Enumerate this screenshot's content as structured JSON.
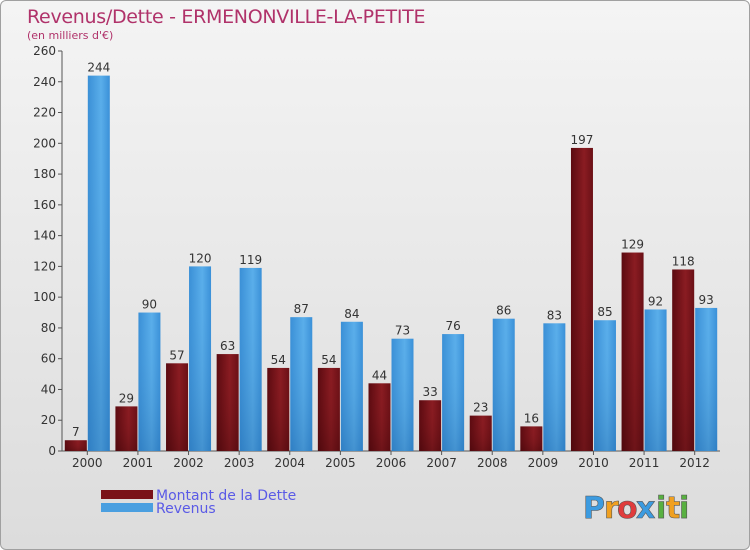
{
  "title": "Revenus/Dette - ERMENONVILLE-LA-PETITE",
  "subtitle": "(en milliers d'€)",
  "logo": {
    "letters": [
      {
        "ch": "P",
        "color": "#3c9be0"
      },
      {
        "ch": "r",
        "color": "#f0a020"
      },
      {
        "ch": "o",
        "color": "#e03c3c"
      },
      {
        "ch": "x",
        "color": "#3c9be0"
      },
      {
        "ch": "i",
        "color": "#58b040"
      },
      {
        "ch": "t",
        "color": "#f0a020"
      },
      {
        "ch": "i",
        "color": "#58b040"
      }
    ]
  },
  "chart_data": {
    "type": "bar",
    "categories": [
      "2000",
      "2001",
      "2002",
      "2003",
      "2004",
      "2005",
      "2006",
      "2007",
      "2008",
      "2009",
      "2010",
      "2011",
      "2012"
    ],
    "series": [
      {
        "name": "Montant de la Dette",
        "color": "#7a1218",
        "values": [
          7,
          29,
          57,
          63,
          54,
          54,
          44,
          33,
          23,
          16,
          197,
          129,
          118
        ]
      },
      {
        "name": "Revenus",
        "color": "#4a9fe0",
        "values": [
          244,
          90,
          120,
          119,
          87,
          84,
          73,
          76,
          86,
          83,
          85,
          92,
          93
        ]
      }
    ],
    "yticks": [
      0,
      20,
      40,
      60,
      80,
      100,
      120,
      140,
      160,
      180,
      200,
      220,
      240,
      260
    ],
    "ylim": [
      0,
      260
    ],
    "grid": false,
    "legend_position": "bottom-left"
  }
}
